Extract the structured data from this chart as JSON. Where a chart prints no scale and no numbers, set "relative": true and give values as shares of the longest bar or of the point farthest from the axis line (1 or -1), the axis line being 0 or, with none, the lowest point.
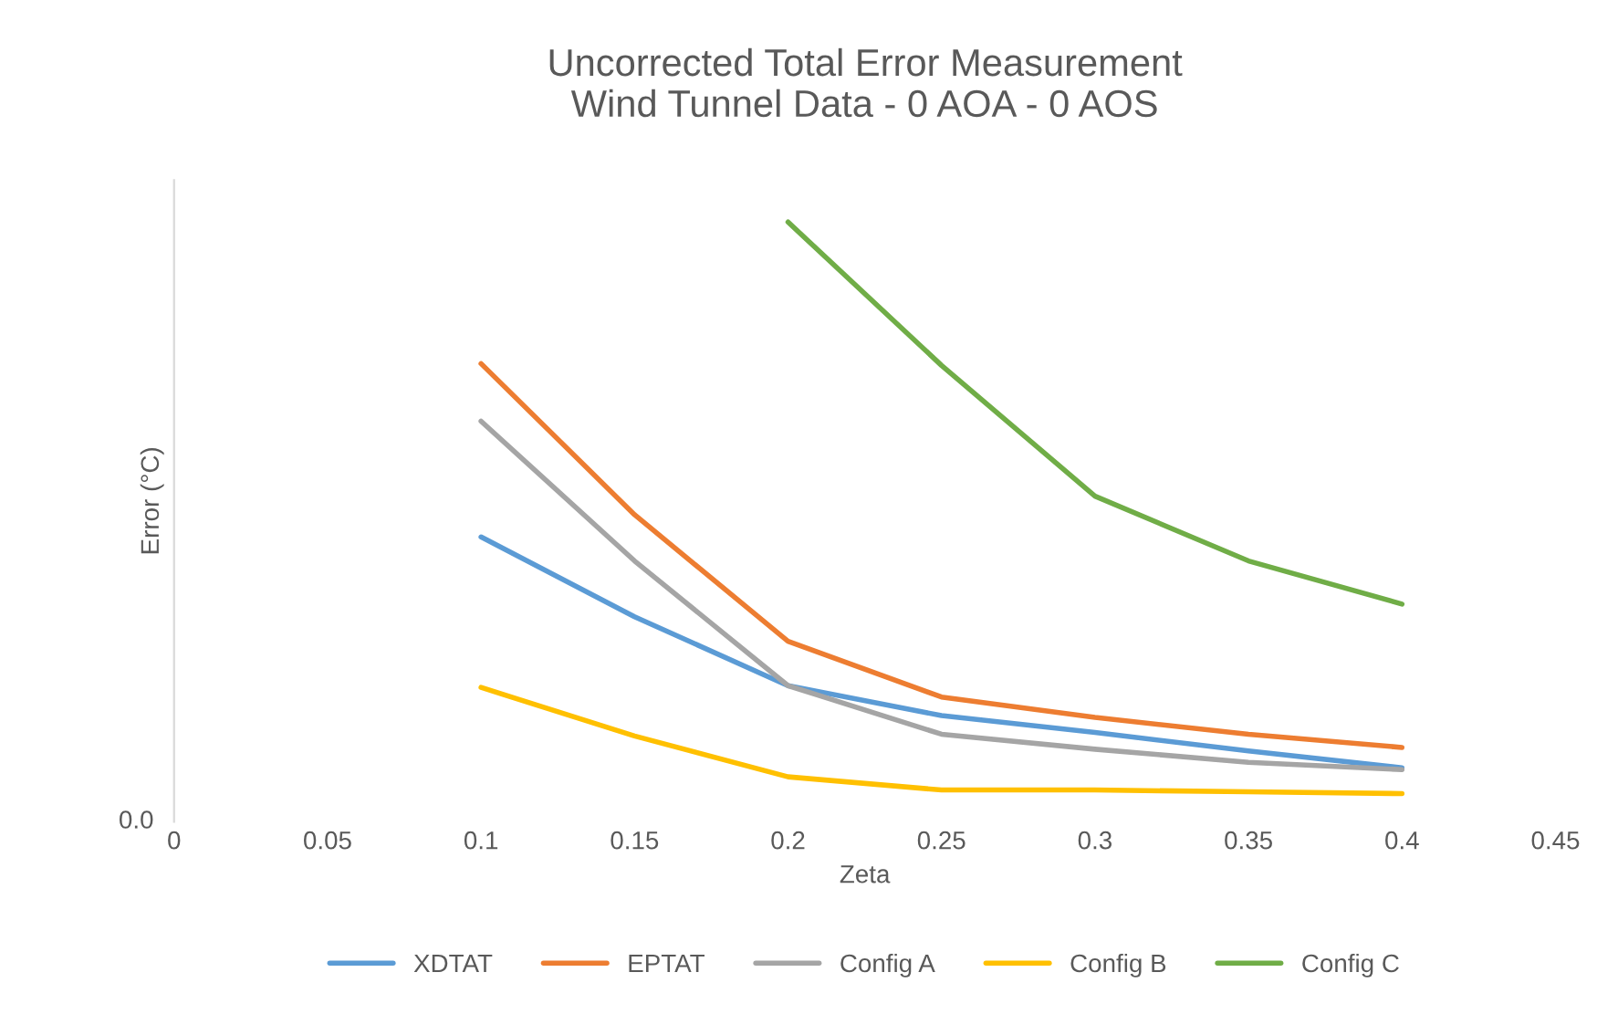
{
  "chart_data": {
    "type": "line",
    "title": "Uncorrected Total Error Measurement\nWind Tunnel Data - 0 AOA - 0 AOS",
    "xlabel": "Zeta",
    "ylabel": "Error (°C)",
    "relative": true,
    "xlim": [
      0,
      0.45
    ],
    "xticks": [
      0,
      0.05,
      0.1,
      0.15,
      0.2,
      0.25,
      0.3,
      0.35,
      0.4,
      0.45
    ],
    "annotations": [
      "0.0"
    ],
    "series": [
      {
        "name": "XDTAT",
        "color": "#5b9bd5",
        "x": [
          0.1,
          0.15,
          0.2,
          0.25,
          0.3,
          0.35,
          0.4
        ],
        "values": [
          0.475,
          0.342,
          0.227,
          0.177,
          0.149,
          0.118,
          0.09
        ]
      },
      {
        "name": "EPTAT",
        "color": "#ed7d31",
        "x": [
          0.1,
          0.15,
          0.2,
          0.25,
          0.3,
          0.35,
          0.4
        ],
        "values": [
          0.764,
          0.512,
          0.301,
          0.208,
          0.174,
          0.146,
          0.124
        ]
      },
      {
        "name": "Config A",
        "color": "#a5a5a5",
        "x": [
          0.1,
          0.15,
          0.2,
          0.25,
          0.3,
          0.35,
          0.4
        ],
        "values": [
          0.668,
          0.435,
          0.227,
          0.146,
          0.121,
          0.099,
          0.087
        ]
      },
      {
        "name": "Config B",
        "color": "#ffc000",
        "x": [
          0.1,
          0.15,
          0.2,
          0.25,
          0.3,
          0.35,
          0.4
        ],
        "values": [
          0.224,
          0.143,
          0.075,
          0.053,
          0.053,
          0.05,
          0.047
        ]
      },
      {
        "name": "Config C",
        "color": "#70ad47",
        "x": [
          0.2,
          0.25,
          0.3,
          0.35,
          0.4
        ],
        "values": [
          1.0,
          0.761,
          0.543,
          0.435,
          0.363
        ]
      }
    ],
    "legend": "bottom",
    "grid": false,
    "marker": "none",
    "line_style": "solid"
  }
}
